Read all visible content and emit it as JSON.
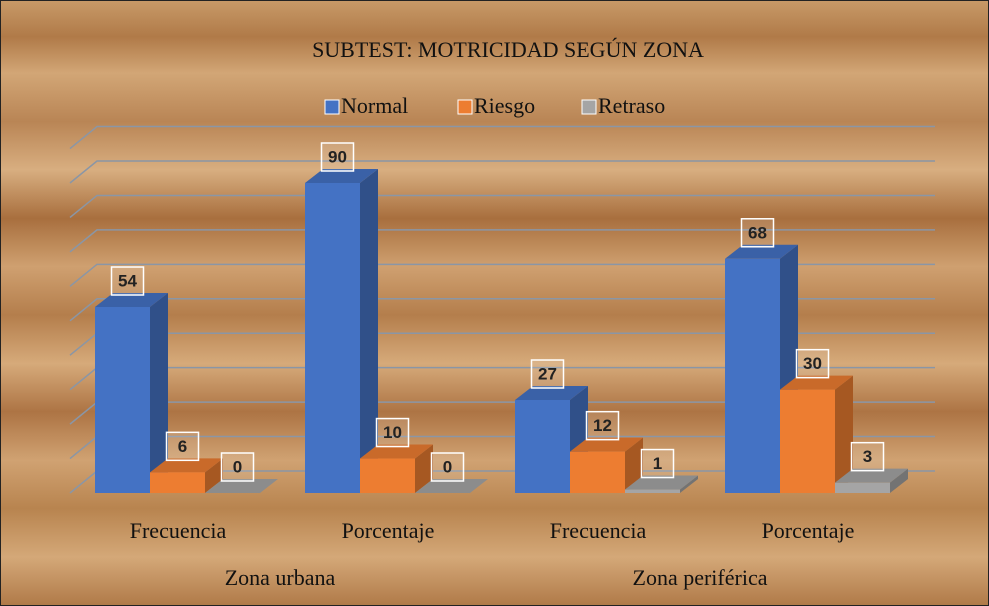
{
  "chart_data": {
    "type": "bar3d",
    "title": "SUBTEST: MOTRICIDAD SEGÚN ZONA",
    "categories": [
      "Frecuencia",
      "Porcentaje",
      "Frecuencia",
      "Porcentaje"
    ],
    "groups": [
      {
        "name": "Zona urbana",
        "span": [
          0,
          1
        ]
      },
      {
        "name": "Zona periférica",
        "span": [
          2,
          3
        ]
      }
    ],
    "series": [
      {
        "name": "Normal",
        "color": "#4472c4",
        "values": [
          54,
          90,
          27,
          68
        ]
      },
      {
        "name": "Riesgo",
        "color": "#ed7d31",
        "values": [
          6,
          10,
          12,
          30
        ]
      },
      {
        "name": "Retraso",
        "color": "#a5a5a5",
        "values": [
          0,
          0,
          1,
          3
        ]
      }
    ],
    "ylim": [
      0,
      100
    ],
    "yticks": [
      0,
      10,
      20,
      30,
      40,
      50,
      60,
      70,
      80,
      90,
      100
    ],
    "grid": true,
    "legend": "top"
  }
}
